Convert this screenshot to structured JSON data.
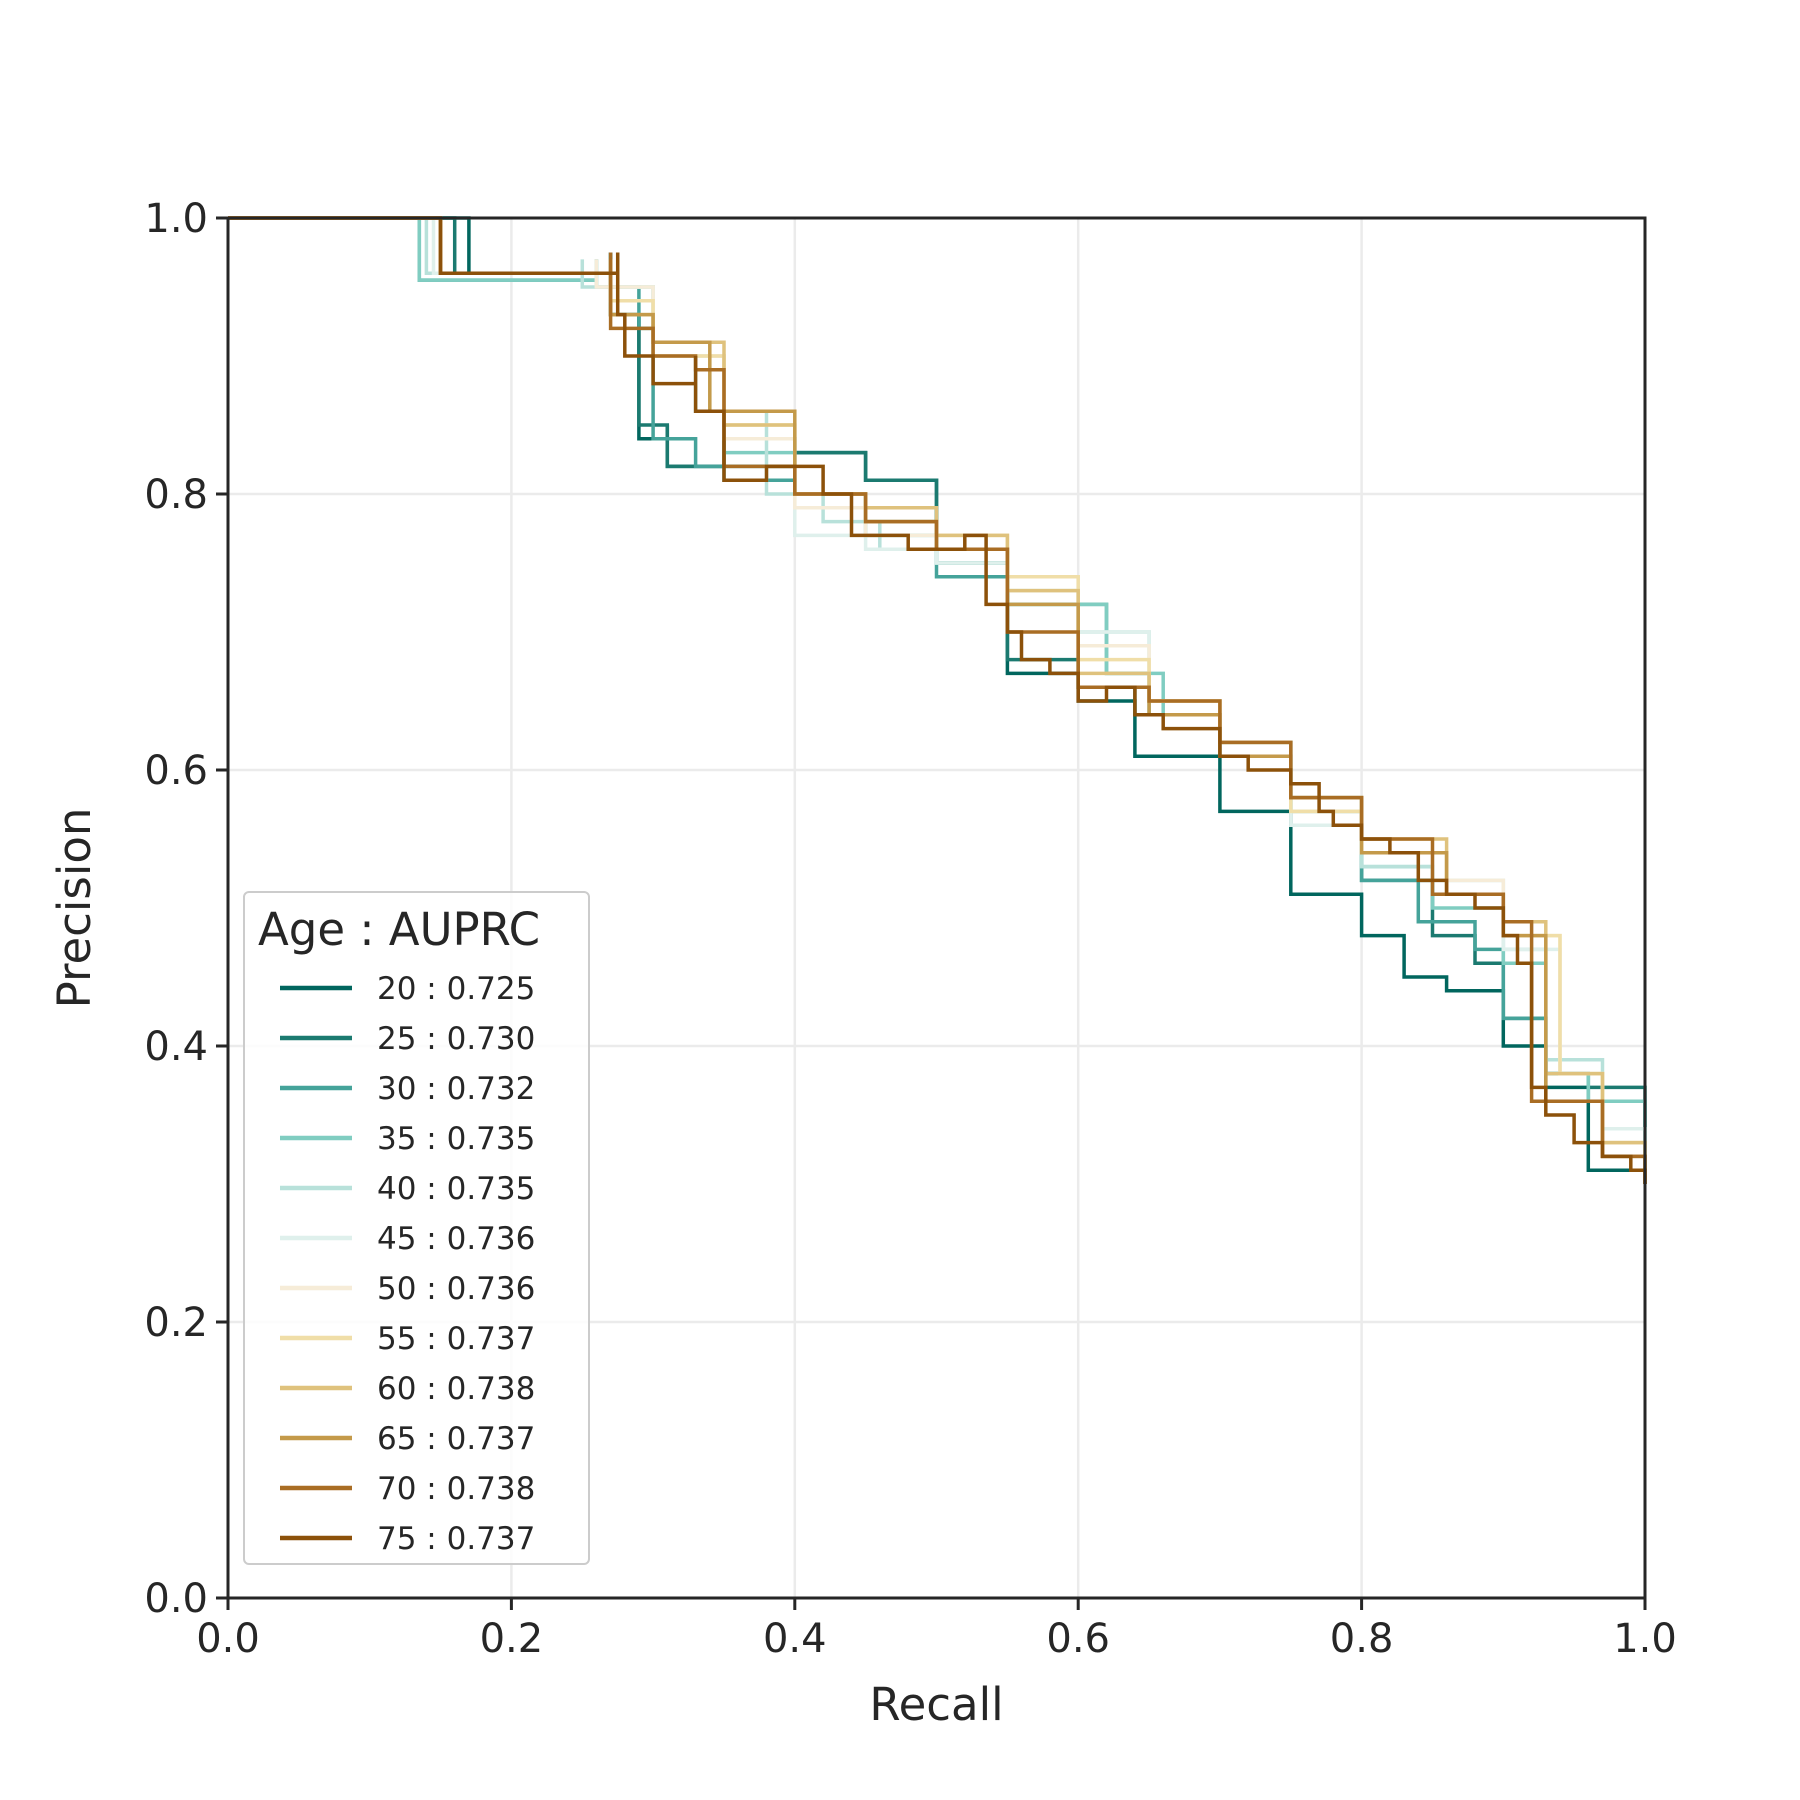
{
  "chart_data": {
    "type": "line",
    "title": "",
    "xlabel": "Recall",
    "ylabel": "Precision",
    "xlim": [
      0.0,
      1.0
    ],
    "ylim": [
      0.0,
      1.0
    ],
    "xticks": [
      "0.0",
      "0.2",
      "0.4",
      "0.6",
      "0.8",
      "1.0"
    ],
    "yticks": [
      "0.0",
      "0.2",
      "0.4",
      "0.6",
      "0.8",
      "1.0"
    ],
    "grid": true,
    "legend": {
      "title": "Age : AUPRC",
      "placement": "lower-left"
    },
    "series": [
      {
        "name": "20 : 0.725",
        "color": "#01665e",
        "x": [
          0.0,
          0.17,
          0.17,
          0.27,
          0.27,
          0.29,
          0.29,
          0.31,
          0.31,
          0.35,
          0.35,
          0.4,
          0.4,
          0.45,
          0.5,
          0.55,
          0.55,
          0.6,
          0.6,
          0.64,
          0.64,
          0.7,
          0.7,
          0.75,
          0.75,
          0.8,
          0.8,
          0.83,
          0.83,
          0.86,
          0.86,
          0.9,
          0.9,
          0.93,
          0.93,
          0.96,
          0.96,
          0.98,
          1.0
        ],
        "y": [
          1.0,
          1.0,
          0.96,
          0.975,
          0.93,
          0.92,
          0.84,
          0.85,
          0.82,
          0.83,
          0.84,
          0.84,
          0.83,
          0.81,
          0.75,
          0.73,
          0.67,
          0.66,
          0.65,
          0.64,
          0.61,
          0.6,
          0.57,
          0.54,
          0.51,
          0.5,
          0.48,
          0.47,
          0.45,
          0.45,
          0.44,
          0.43,
          0.4,
          0.38,
          0.37,
          0.36,
          0.31,
          0.31,
          0.3
        ]
      },
      {
        "name": "25 : 0.730",
        "color": "#1b7a70",
        "x": [
          0.0,
          0.16,
          0.16,
          0.27,
          0.27,
          0.29,
          0.29,
          0.31,
          0.31,
          0.35,
          0.4,
          0.45,
          0.5,
          0.55,
          0.55,
          0.6,
          0.64,
          0.7,
          0.75,
          0.8,
          0.85,
          0.88,
          0.9,
          0.93,
          0.96,
          1.0
        ],
        "y": [
          1.0,
          1.0,
          0.96,
          0.975,
          0.93,
          0.92,
          0.85,
          0.85,
          0.82,
          0.82,
          0.83,
          0.81,
          0.76,
          0.73,
          0.68,
          0.66,
          0.64,
          0.61,
          0.56,
          0.52,
          0.48,
          0.46,
          0.42,
          0.38,
          0.37,
          0.3
        ]
      },
      {
        "name": "30 : 0.732",
        "color": "#45a39a",
        "x": [
          0.0,
          0.135,
          0.135,
          0.26,
          0.26,
          0.29,
          0.3,
          0.33,
          0.35,
          0.4,
          0.45,
          0.5,
          0.55,
          0.58,
          0.62,
          0.65,
          0.7,
          0.75,
          0.8,
          0.84,
          0.88,
          0.9,
          0.93,
          0.96,
          1.0
        ],
        "y": [
          1.0,
          1.0,
          0.955,
          0.97,
          0.95,
          0.92,
          0.84,
          0.82,
          0.81,
          0.8,
          0.78,
          0.74,
          0.72,
          0.72,
          0.67,
          0.64,
          0.62,
          0.57,
          0.52,
          0.49,
          0.47,
          0.42,
          0.38,
          0.36,
          0.3
        ]
      },
      {
        "name": "35 : 0.735",
        "color": "#80cdc1",
        "x": [
          0.0,
          0.135,
          0.135,
          0.26,
          0.26,
          0.3,
          0.33,
          0.35,
          0.4,
          0.45,
          0.5,
          0.55,
          0.58,
          0.62,
          0.66,
          0.7,
          0.75,
          0.8,
          0.85,
          0.9,
          0.93,
          0.96,
          1.0
        ],
        "y": [
          1.0,
          1.0,
          0.955,
          0.97,
          0.95,
          0.9,
          0.86,
          0.83,
          0.8,
          0.77,
          0.75,
          0.72,
          0.72,
          0.67,
          0.64,
          0.62,
          0.58,
          0.53,
          0.5,
          0.46,
          0.38,
          0.36,
          0.3
        ]
      },
      {
        "name": "40 : 0.735",
        "color": "#b8e1da",
        "x": [
          0.0,
          0.14,
          0.14,
          0.25,
          0.25,
          0.3,
          0.34,
          0.38,
          0.42,
          0.46,
          0.5,
          0.55,
          0.6,
          0.65,
          0.7,
          0.75,
          0.8,
          0.85,
          0.9,
          0.93,
          0.97,
          1.0
        ],
        "y": [
          1.0,
          1.0,
          0.96,
          0.97,
          0.95,
          0.9,
          0.86,
          0.8,
          0.78,
          0.76,
          0.75,
          0.73,
          0.7,
          0.65,
          0.62,
          0.57,
          0.53,
          0.52,
          0.47,
          0.39,
          0.34,
          0.3
        ]
      },
      {
        "name": "45 : 0.736",
        "color": "#dff0ec",
        "x": [
          0.0,
          0.145,
          0.145,
          0.26,
          0.26,
          0.3,
          0.35,
          0.4,
          0.45,
          0.5,
          0.55,
          0.6,
          0.65,
          0.7,
          0.75,
          0.8,
          0.85,
          0.9,
          0.94,
          0.97,
          1.0
        ],
        "y": [
          1.0,
          1.0,
          0.96,
          0.97,
          0.95,
          0.9,
          0.84,
          0.77,
          0.76,
          0.75,
          0.74,
          0.7,
          0.65,
          0.62,
          0.56,
          0.54,
          0.52,
          0.47,
          0.38,
          0.34,
          0.3
        ]
      },
      {
        "name": "50 : 0.736",
        "color": "#f6ecd8",
        "x": [
          0.0,
          0.15,
          0.15,
          0.26,
          0.26,
          0.3,
          0.35,
          0.4,
          0.45,
          0.5,
          0.55,
          0.6,
          0.65,
          0.7,
          0.75,
          0.8,
          0.86,
          0.9,
          0.94,
          0.97,
          1.0
        ],
        "y": [
          1.0,
          1.0,
          0.96,
          0.97,
          0.95,
          0.9,
          0.84,
          0.79,
          0.77,
          0.76,
          0.73,
          0.69,
          0.65,
          0.62,
          0.57,
          0.54,
          0.52,
          0.48,
          0.38,
          0.33,
          0.3
        ]
      },
      {
        "name": "55 : 0.737",
        "color": "#f0dea8",
        "x": [
          0.0,
          0.15,
          0.15,
          0.27,
          0.27,
          0.3,
          0.35,
          0.4,
          0.45,
          0.5,
          0.55,
          0.6,
          0.65,
          0.7,
          0.75,
          0.8,
          0.86,
          0.9,
          0.94,
          0.97,
          1.0
        ],
        "y": [
          1.0,
          1.0,
          0.96,
          0.97,
          0.94,
          0.9,
          0.85,
          0.8,
          0.78,
          0.77,
          0.74,
          0.68,
          0.65,
          0.62,
          0.57,
          0.54,
          0.51,
          0.48,
          0.38,
          0.33,
          0.3
        ]
      },
      {
        "name": "60 : 0.738",
        "color": "#dfc27d",
        "x": [
          0.0,
          0.15,
          0.15,
          0.27,
          0.27,
          0.3,
          0.35,
          0.4,
          0.45,
          0.5,
          0.55,
          0.6,
          0.65,
          0.7,
          0.75,
          0.8,
          0.86,
          0.9,
          0.93,
          0.97,
          1.0
        ],
        "y": [
          1.0,
          1.0,
          0.96,
          0.97,
          0.93,
          0.91,
          0.85,
          0.8,
          0.79,
          0.77,
          0.73,
          0.67,
          0.65,
          0.62,
          0.58,
          0.55,
          0.51,
          0.49,
          0.38,
          0.33,
          0.3
        ]
      },
      {
        "name": "65 : 0.737",
        "color": "#c49a4a",
        "x": [
          0.0,
          0.15,
          0.15,
          0.27,
          0.27,
          0.3,
          0.34,
          0.4,
          0.45,
          0.5,
          0.55,
          0.6,
          0.65,
          0.7,
          0.75,
          0.8,
          0.86,
          0.9,
          0.93,
          0.97,
          1.0
        ],
        "y": [
          1.0,
          1.0,
          0.96,
          0.97,
          0.93,
          0.91,
          0.86,
          0.8,
          0.78,
          0.76,
          0.72,
          0.66,
          0.64,
          0.61,
          0.58,
          0.54,
          0.51,
          0.48,
          0.36,
          0.32,
          0.3
        ]
      },
      {
        "name": "70 : 0.738",
        "color": "#a96d24",
        "x": [
          0.0,
          0.15,
          0.15,
          0.27,
          0.27,
          0.3,
          0.33,
          0.35,
          0.4,
          0.45,
          0.5,
          0.54,
          0.55,
          0.6,
          0.65,
          0.7,
          0.75,
          0.8,
          0.85,
          0.9,
          0.92,
          0.97,
          1.0
        ],
        "y": [
          1.0,
          1.0,
          0.96,
          0.975,
          0.92,
          0.9,
          0.89,
          0.82,
          0.8,
          0.78,
          0.76,
          0.76,
          0.7,
          0.66,
          0.65,
          0.62,
          0.58,
          0.55,
          0.51,
          0.49,
          0.36,
          0.32,
          0.3
        ]
      },
      {
        "name": "75 : 0.737",
        "color": "#8c510a",
        "x": [
          0.0,
          0.15,
          0.15,
          0.275,
          0.275,
          0.28,
          0.28,
          0.29,
          0.3,
          0.32,
          0.33,
          0.33,
          0.35,
          0.35,
          0.38,
          0.42,
          0.44,
          0.44,
          0.48,
          0.52,
          0.535,
          0.535,
          0.55,
          0.56,
          0.58,
          0.6,
          0.62,
          0.64,
          0.64,
          0.66,
          0.7,
          0.72,
          0.75,
          0.76,
          0.77,
          0.78,
          0.8,
          0.82,
          0.84,
          0.86,
          0.88,
          0.9,
          0.91,
          0.92,
          0.92,
          0.93,
          0.95,
          0.97,
          0.99,
          1.0
        ],
        "y": [
          1.0,
          1.0,
          0.96,
          0.975,
          0.93,
          0.92,
          0.9,
          0.9,
          0.88,
          0.88,
          0.9,
          0.86,
          0.84,
          0.81,
          0.82,
          0.8,
          0.8,
          0.77,
          0.76,
          0.77,
          0.75,
          0.72,
          0.7,
          0.68,
          0.67,
          0.65,
          0.66,
          0.66,
          0.64,
          0.63,
          0.61,
          0.6,
          0.59,
          0.59,
          0.57,
          0.56,
          0.55,
          0.54,
          0.52,
          0.51,
          0.5,
          0.48,
          0.46,
          0.46,
          0.37,
          0.35,
          0.33,
          0.32,
          0.31,
          0.3
        ]
      }
    ]
  }
}
